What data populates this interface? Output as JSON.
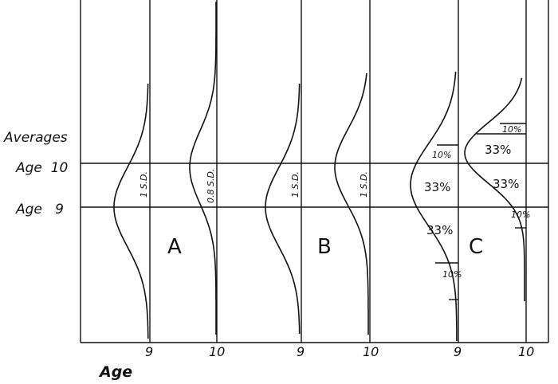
{
  "left_labels": {
    "averages": "Averages",
    "age10": "Age  10",
    "age9": "Age   9"
  },
  "x_axis_title": "Age",
  "tick_labels": [
    "9",
    "10",
    "9",
    "10",
    "9",
    "10"
  ],
  "group_letters": [
    "A",
    "B",
    "C"
  ],
  "sd_labels": [
    "1 S.D.",
    "0.8 S.D.",
    "1 S.D.",
    "1 S.D."
  ],
  "percent_labels_c1": [
    "10%",
    "33%",
    "33%",
    "10%"
  ],
  "percent_labels_c2": [
    "10%",
    "33%",
    "33%",
    "10%"
  ]
}
